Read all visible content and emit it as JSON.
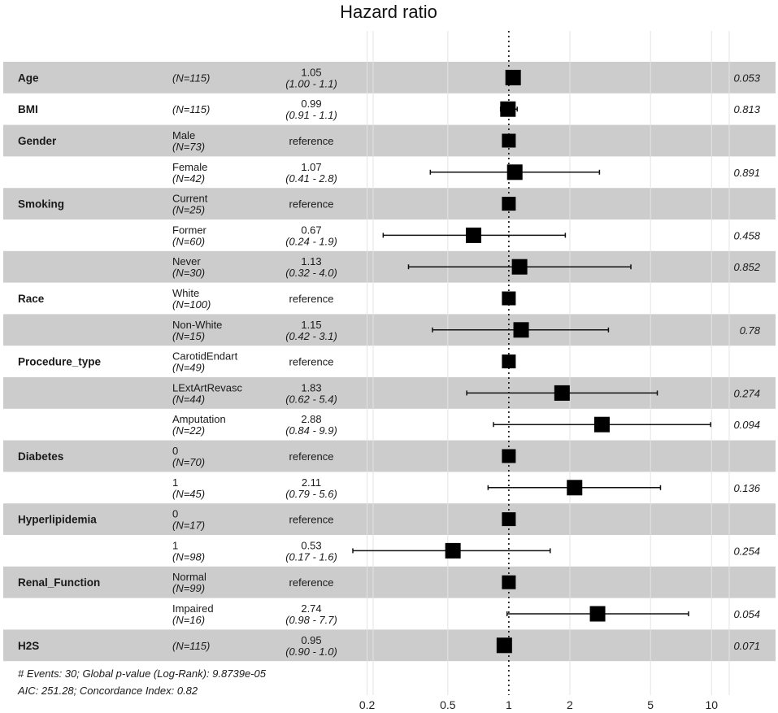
{
  "chart_data": {
    "type": "forest",
    "title": "Hazard ratio",
    "xscale": "log",
    "xlim": [
      0.17,
      12
    ],
    "reference_line": 1,
    "xticks": [
      {
        "value": 0.2,
        "label": "0.2"
      },
      {
        "value": 0.5,
        "label": "0.5"
      },
      {
        "value": 1,
        "label": "1"
      },
      {
        "value": 2,
        "label": "2"
      },
      {
        "value": 5,
        "label": "5"
      },
      {
        "value": 10,
        "label": "10"
      }
    ],
    "rows": [
      {
        "variable": "Age",
        "level": "",
        "n": "(N=115)",
        "hr": 1.05,
        "lo": 1.0,
        "hi": 1.1,
        "estimate": "1.05",
        "ci": "(1.00 - 1.1)",
        "p": "0.053",
        "shaded": true
      },
      {
        "variable": "BMI",
        "level": "",
        "n": "(N=115)",
        "hr": 0.99,
        "lo": 0.91,
        "hi": 1.1,
        "estimate": "0.99",
        "ci": "(0.91 - 1.1)",
        "p": "0.813",
        "shaded": false
      },
      {
        "variable": "Gender",
        "level": "Male",
        "n": "(N=73)",
        "hr": 1,
        "estimate": "reference",
        "ci": "",
        "p": "",
        "reference": true,
        "shaded": true
      },
      {
        "variable": "",
        "level": "Female",
        "n": "(N=42)",
        "hr": 1.07,
        "lo": 0.41,
        "hi": 2.8,
        "estimate": "1.07",
        "ci": "(0.41 - 2.8)",
        "p": "0.891",
        "shaded": false
      },
      {
        "variable": "Smoking",
        "level": "Current",
        "n": "(N=25)",
        "hr": 1,
        "estimate": "reference",
        "ci": "",
        "p": "",
        "reference": true,
        "shaded": true
      },
      {
        "variable": "",
        "level": "Former",
        "n": "(N=60)",
        "hr": 0.67,
        "lo": 0.24,
        "hi": 1.9,
        "estimate": "0.67",
        "ci": "(0.24 - 1.9)",
        "p": "0.458",
        "shaded": false
      },
      {
        "variable": "",
        "level": "Never",
        "n": "(N=30)",
        "hr": 1.13,
        "lo": 0.32,
        "hi": 4.0,
        "estimate": "1.13",
        "ci": "(0.32 - 4.0)",
        "p": "0.852",
        "shaded": true
      },
      {
        "variable": "Race",
        "level": "White",
        "n": "(N=100)",
        "hr": 1,
        "estimate": "reference",
        "ci": "",
        "p": "",
        "reference": true,
        "shaded": false
      },
      {
        "variable": "",
        "level": "Non-White",
        "n": "(N=15)",
        "hr": 1.15,
        "lo": 0.42,
        "hi": 3.1,
        "estimate": "1.15",
        "ci": "(0.42 - 3.1)",
        "p": "0.78",
        "shaded": true
      },
      {
        "variable": "Procedure_type",
        "level": "CarotidEndart",
        "n": "(N=49)",
        "hr": 1,
        "estimate": "reference",
        "ci": "",
        "p": "",
        "reference": true,
        "shaded": false
      },
      {
        "variable": "",
        "level": "LExtArtRevasc",
        "n": "(N=44)",
        "hr": 1.83,
        "lo": 0.62,
        "hi": 5.4,
        "estimate": "1.83",
        "ci": "(0.62 - 5.4)",
        "p": "0.274",
        "shaded": true
      },
      {
        "variable": "",
        "level": "Amputation",
        "n": "(N=22)",
        "hr": 2.88,
        "lo": 0.84,
        "hi": 9.9,
        "estimate": "2.88",
        "ci": "(0.84 - 9.9)",
        "p": "0.094",
        "shaded": false
      },
      {
        "variable": "Diabetes",
        "level": "0",
        "n": "(N=70)",
        "hr": 1,
        "estimate": "reference",
        "ci": "",
        "p": "",
        "reference": true,
        "shaded": true
      },
      {
        "variable": "",
        "level": "1",
        "n": "(N=45)",
        "hr": 2.11,
        "lo": 0.79,
        "hi": 5.6,
        "estimate": "2.11",
        "ci": "(0.79 - 5.6)",
        "p": "0.136",
        "shaded": false
      },
      {
        "variable": "Hyperlipidemia",
        "level": "0",
        "n": "(N=17)",
        "hr": 1,
        "estimate": "reference",
        "ci": "",
        "p": "",
        "reference": true,
        "shaded": true
      },
      {
        "variable": "",
        "level": "1",
        "n": "(N=98)",
        "hr": 0.53,
        "lo": 0.17,
        "hi": 1.6,
        "estimate": "0.53",
        "ci": "(0.17 - 1.6)",
        "p": "0.254",
        "shaded": false
      },
      {
        "variable": "Renal_Function",
        "level": "Normal",
        "n": "(N=99)",
        "hr": 1,
        "estimate": "reference",
        "ci": "",
        "p": "",
        "reference": true,
        "shaded": true
      },
      {
        "variable": "",
        "level": "Impaired",
        "n": "(N=16)",
        "hr": 2.74,
        "lo": 0.98,
        "hi": 7.7,
        "estimate": "2.74",
        "ci": "(0.98 - 7.7)",
        "p": "0.054",
        "shaded": false
      },
      {
        "variable": "H2S",
        "level": "",
        "n": "(N=115)",
        "hr": 0.95,
        "lo": 0.9,
        "hi": 1.0,
        "estimate": "0.95",
        "ci": "(0.90 - 1.0)",
        "p": "0.071",
        "shaded": true
      }
    ],
    "footnote_lines": [
      "# Events: 30; Global p-value (Log-Rank): 9.8739e-05",
      "AIC: 251.28; Concordance Index: 0.82"
    ]
  }
}
